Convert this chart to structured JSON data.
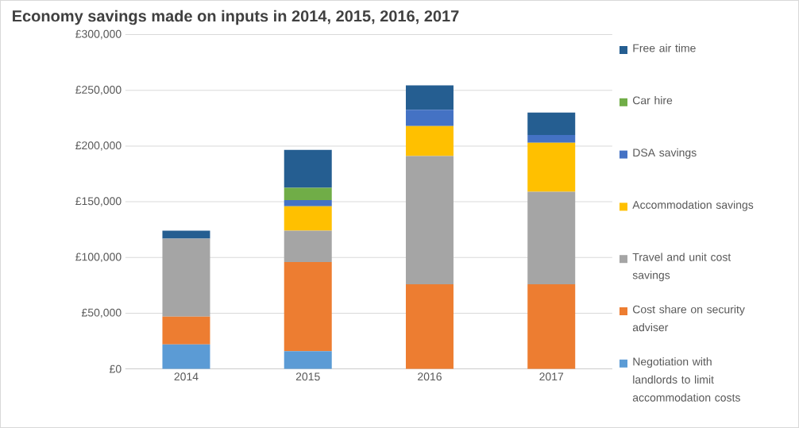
{
  "chart_data": {
    "type": "bar",
    "stacked": true,
    "title": "Economy savings made on inputs in 2014, 2015, 2016, 2017",
    "categories": [
      "2014",
      "2015",
      "2016",
      "2017"
    ],
    "series": [
      {
        "name": "Negotiation with landlords to limit accommodation costs",
        "color": "#5b9bd5",
        "values": [
          22000,
          16000,
          null,
          null
        ]
      },
      {
        "name": "Cost share on security adviser",
        "color": "#ed7d31",
        "values": [
          25000,
          80000,
          76000,
          76000
        ]
      },
      {
        "name": "Travel and unit cost savings",
        "color": "#a5a5a5",
        "values": [
          70000,
          28000,
          115000,
          83000
        ]
      },
      {
        "name": "Accommodation savings",
        "color": "#ffc000",
        "values": [
          null,
          22000,
          27000,
          44000
        ]
      },
      {
        "name": "DSA savings",
        "color": "#4472c4",
        "values": [
          null,
          5500,
          14500,
          7000
        ]
      },
      {
        "name": "Car hire",
        "color": "#70ad47",
        "values": [
          null,
          11000,
          null,
          null
        ]
      },
      {
        "name": "Free air time",
        "color": "#255e91",
        "values": [
          7000,
          34000,
          22000,
          20000
        ]
      }
    ],
    "ylim": [
      0,
      300000
    ],
    "yticks": [
      {
        "value": 0,
        "label": "£0"
      },
      {
        "value": 50000,
        "label": "£50,000"
      },
      {
        "value": 100000,
        "label": "£100,000"
      },
      {
        "value": 150000,
        "label": "£150,000"
      },
      {
        "value": 200000,
        "label": "£200,000"
      },
      {
        "value": 250000,
        "label": "£250,000"
      },
      {
        "value": 300000,
        "label": "£300,000"
      }
    ],
    "grid": "y",
    "legend": "right"
  }
}
